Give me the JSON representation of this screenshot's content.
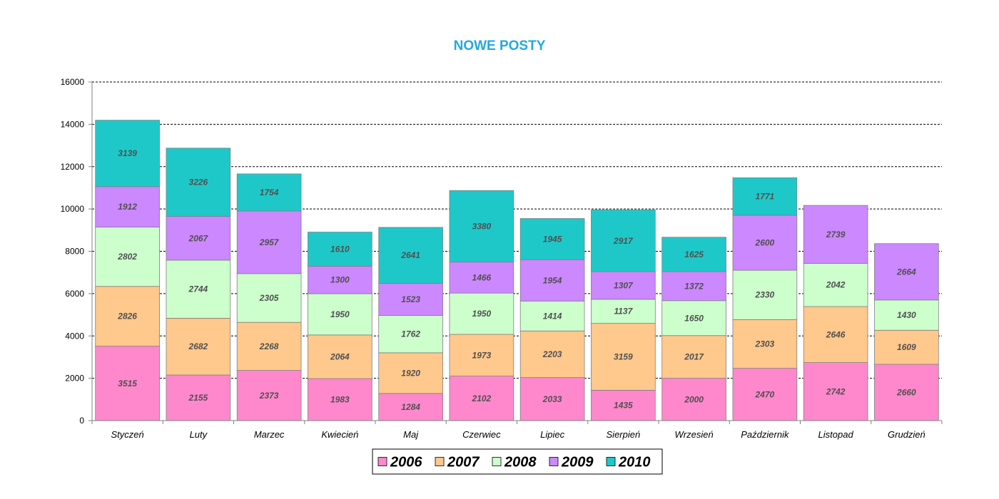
{
  "chart_data": {
    "type": "bar",
    "stacked": true,
    "title": "NOWE POSTY",
    "title_color": "#21A9E1",
    "xlabel": "",
    "ylabel": "",
    "ylim": [
      0,
      16000
    ],
    "yticks": [
      "0",
      "2000",
      "4000",
      "6000",
      "8000",
      "10000",
      "12000",
      "14000",
      "16000"
    ],
    "grid": true,
    "legend_position": "bottom-center",
    "categories": [
      "Styczeń",
      "Luty",
      "Marzec",
      "Kwiecień",
      "Maj",
      "Czerwiec",
      "Lipiec",
      "Sierpień",
      "Wrzesień",
      "Październik",
      "Listopad",
      "Grudzień"
    ],
    "series": [
      {
        "name": "2006",
        "color": "#FF88CC",
        "values": [
          3515,
          2155,
          2373,
          1983,
          1284,
          2102,
          2033,
          1435,
          2000,
          2470,
          2742,
          2660
        ]
      },
      {
        "name": "2007",
        "color": "#FFC88C",
        "values": [
          2826,
          2682,
          2268,
          2064,
          1920,
          1973,
          2203,
          3159,
          2017,
          2303,
          2646,
          1609
        ]
      },
      {
        "name": "2008",
        "color": "#CCFFCC",
        "values": [
          2802,
          2744,
          2305,
          1950,
          1762,
          1950,
          1414,
          1137,
          1650,
          2330,
          2042,
          1430
        ]
      },
      {
        "name": "2009",
        "color": "#CC88FF",
        "values": [
          1912,
          2067,
          2957,
          1300,
          1523,
          1466,
          1954,
          1307,
          1372,
          2600,
          2739,
          2664
        ]
      },
      {
        "name": "2010",
        "color": "#1FC8C8",
        "values": [
          3139,
          3226,
          1754,
          1610,
          2641,
          3380,
          1945,
          2917,
          1625,
          1771,
          null,
          null
        ]
      }
    ]
  }
}
